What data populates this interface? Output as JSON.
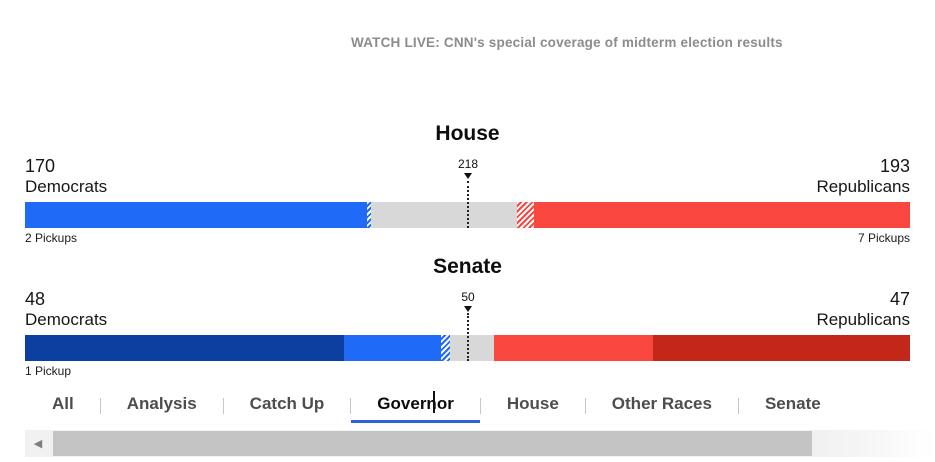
{
  "header": {
    "live_text": "WATCH LIVE: CNN's special coverage of midterm election results"
  },
  "colors": {
    "dem_blue": "#1f6af7",
    "dem_dark_blue": "#0d3fa0",
    "rep_red": "#f9473f",
    "rep_dark_red": "#c3271a",
    "undecided_gray": "#d8d8d8",
    "tab_underline_blue": "#2e63d6"
  },
  "icons": {
    "scroll_left_arrow": "◀"
  },
  "chart_data": [
    {
      "type": "bar",
      "subtype": "balance-of-power",
      "title": "House",
      "total_seats": 435,
      "majority_marker": "218",
      "dem": {
        "count": "170",
        "label": "Democrats",
        "pickups": "2 Pickups"
      },
      "rep": {
        "count": "193",
        "label": "Republicans",
        "pickups": "7 Pickups"
      },
      "segments": [
        {
          "name": "dem-won",
          "seats": 168,
          "style": "solid",
          "color_key": "dem_blue"
        },
        {
          "name": "dem-leading",
          "seats": 2,
          "style": "hatch",
          "color_key": "dem_blue"
        },
        {
          "name": "undecided",
          "seats": 72,
          "style": "solid",
          "color_key": "undecided_gray"
        },
        {
          "name": "rep-leading",
          "seats": 8,
          "style": "hatch",
          "color_key": "rep_red"
        },
        {
          "name": "rep-won",
          "seats": 185,
          "style": "solid",
          "color_key": "rep_red"
        }
      ]
    },
    {
      "type": "bar",
      "subtype": "balance-of-power",
      "title": "Senate",
      "total_seats": 100,
      "majority_marker": "50",
      "dem": {
        "count": "48",
        "label": "Democrats",
        "pickups": "1 Pickup"
      },
      "rep": {
        "count": "47",
        "label": "Republicans",
        "pickups": ""
      },
      "segments": [
        {
          "name": "dem-not-up",
          "seats": 36,
          "style": "solid",
          "color_key": "dem_dark_blue"
        },
        {
          "name": "dem-won",
          "seats": 11,
          "style": "solid",
          "color_key": "dem_blue"
        },
        {
          "name": "dem-leading",
          "seats": 1,
          "style": "hatch",
          "color_key": "dem_blue"
        },
        {
          "name": "undecided",
          "seats": 5,
          "style": "solid",
          "color_key": "undecided_gray"
        },
        {
          "name": "rep-won",
          "seats": 18,
          "style": "solid",
          "color_key": "rep_red"
        },
        {
          "name": "rep-not-up",
          "seats": 29,
          "style": "solid",
          "color_key": "rep_dark_red"
        }
      ]
    }
  ],
  "tabs": {
    "items": [
      {
        "label": "All",
        "active": false
      },
      {
        "label": "Analysis",
        "active": false
      },
      {
        "label": "Catch Up",
        "active": false
      },
      {
        "label": "Governor",
        "active": true
      },
      {
        "label": "House",
        "active": false
      },
      {
        "label": "Other Races",
        "active": false
      },
      {
        "label": "Senate",
        "active": false
      }
    ]
  }
}
